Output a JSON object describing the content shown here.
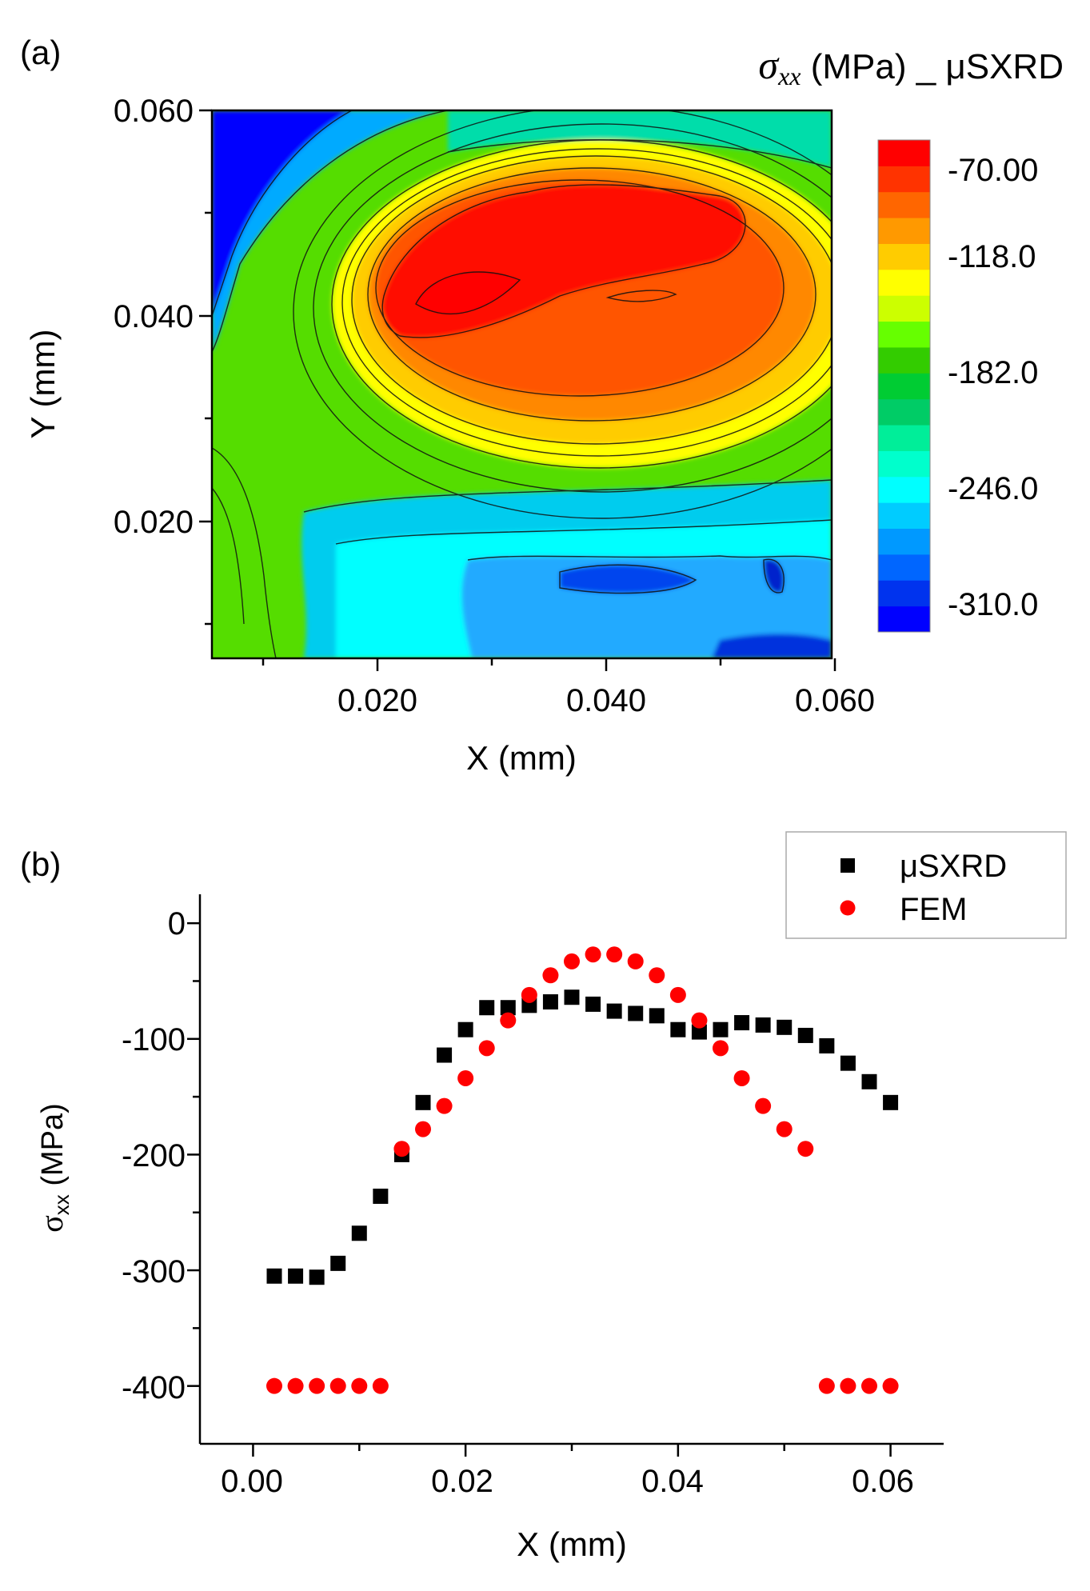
{
  "panel_a": {
    "label": "(a)",
    "title_symbol": "σ",
    "title_subscript": "xx",
    "title_rest": " (MPa) _ μSXRD"
  },
  "panel_b": {
    "label": "(b)",
    "ylabel_symbol": "σ",
    "ylabel_subscript": "xx",
    "ylabel_rest": " (MPa)"
  },
  "colors": {
    "muSXRD": "#000000",
    "FEM": "#ff0000",
    "colorbar": [
      "#0000ff",
      "#0033ee",
      "#0066ff",
      "#0099ff",
      "#00ccff",
      "#00ffff",
      "#00ffcc",
      "#00ee99",
      "#00cc66",
      "#00cc33",
      "#33cc00",
      "#66ff00",
      "#ccff00",
      "#ffff00",
      "#ffcc00",
      "#ff9900",
      "#ff6600",
      "#ff3300",
      "#ff0000"
    ]
  },
  "chart_data": [
    {
      "type": "heatmap",
      "title": "σxx (MPa) _ μSXRD",
      "xlabel": "X (mm)",
      "ylabel": "Y (mm)",
      "xlim": [
        0.006,
        0.06
      ],
      "ylim": [
        0.0075,
        0.06
      ],
      "xticks": [
        "0.020",
        "0.040",
        "0.060"
      ],
      "yticks": [
        "0.020",
        "0.040",
        "0.060"
      ],
      "colorbar": {
        "range": [
          -334,
          -58
        ],
        "labels": [
          "-70.00",
          "-118.0",
          "-182.0",
          "-246.0",
          "-310.0"
        ]
      },
      "features": [
        {
          "description": "compressive minimum (high stress) region",
          "x": 0.032,
          "y": 0.043,
          "value": -70
        },
        {
          "description": "low stress region top-left",
          "x": 0.008,
          "y": 0.057,
          "value": -310
        },
        {
          "description": "low stress pocket bottom-right",
          "x": 0.045,
          "y": 0.013,
          "value": -300
        }
      ]
    },
    {
      "type": "scatter",
      "xlabel": "X (mm)",
      "ylabel": "σxx (MPa)",
      "xlim": [
        -0.005,
        0.065
      ],
      "ylim": [
        -450,
        25
      ],
      "xticks": [
        "0.00",
        "0.02",
        "0.04",
        "0.06"
      ],
      "yticks": [
        "0",
        "-100",
        "-200",
        "-300",
        "-400"
      ],
      "legend_position": "top-right",
      "series": [
        {
          "name": "μSXRD",
          "marker": "square",
          "x": [
            0.002,
            0.004,
            0.006,
            0.008,
            0.01,
            0.012,
            0.014,
            0.016,
            0.018,
            0.02,
            0.022,
            0.024,
            0.026,
            0.028,
            0.03,
            0.032,
            0.034,
            0.036,
            0.038,
            0.04,
            0.042,
            0.044,
            0.046,
            0.048,
            0.05,
            0.052,
            0.054,
            0.056,
            0.058,
            0.06
          ],
          "y": [
            -305,
            -305,
            -306,
            -294,
            -268,
            -236,
            -200,
            -155,
            -114,
            -92,
            -73,
            -73,
            -71,
            -68,
            -64,
            -70,
            -76,
            -78,
            -80,
            -92,
            -94,
            -92,
            -86,
            -88,
            -90,
            -97,
            -106,
            -121,
            -137,
            -155
          ]
        },
        {
          "name": "FEM",
          "marker": "circle",
          "x": [
            0.002,
            0.004,
            0.006,
            0.008,
            0.01,
            0.012,
            0.014,
            0.016,
            0.018,
            0.02,
            0.022,
            0.024,
            0.026,
            0.028,
            0.03,
            0.032,
            0.034,
            0.036,
            0.038,
            0.04,
            0.042,
            0.044,
            0.046,
            0.048,
            0.05,
            0.052,
            0.054,
            0.056,
            0.058,
            0.06
          ],
          "y": [
            -400,
            -400,
            -400,
            -400,
            -400,
            -400,
            -195,
            -178,
            -158,
            -134,
            -108,
            -84,
            -62,
            -45,
            -33,
            -27,
            -27,
            -33,
            -45,
            -62,
            -84,
            -108,
            -134,
            -158,
            -178,
            -195,
            -400,
            -400,
            -400,
            -400
          ]
        }
      ]
    }
  ]
}
